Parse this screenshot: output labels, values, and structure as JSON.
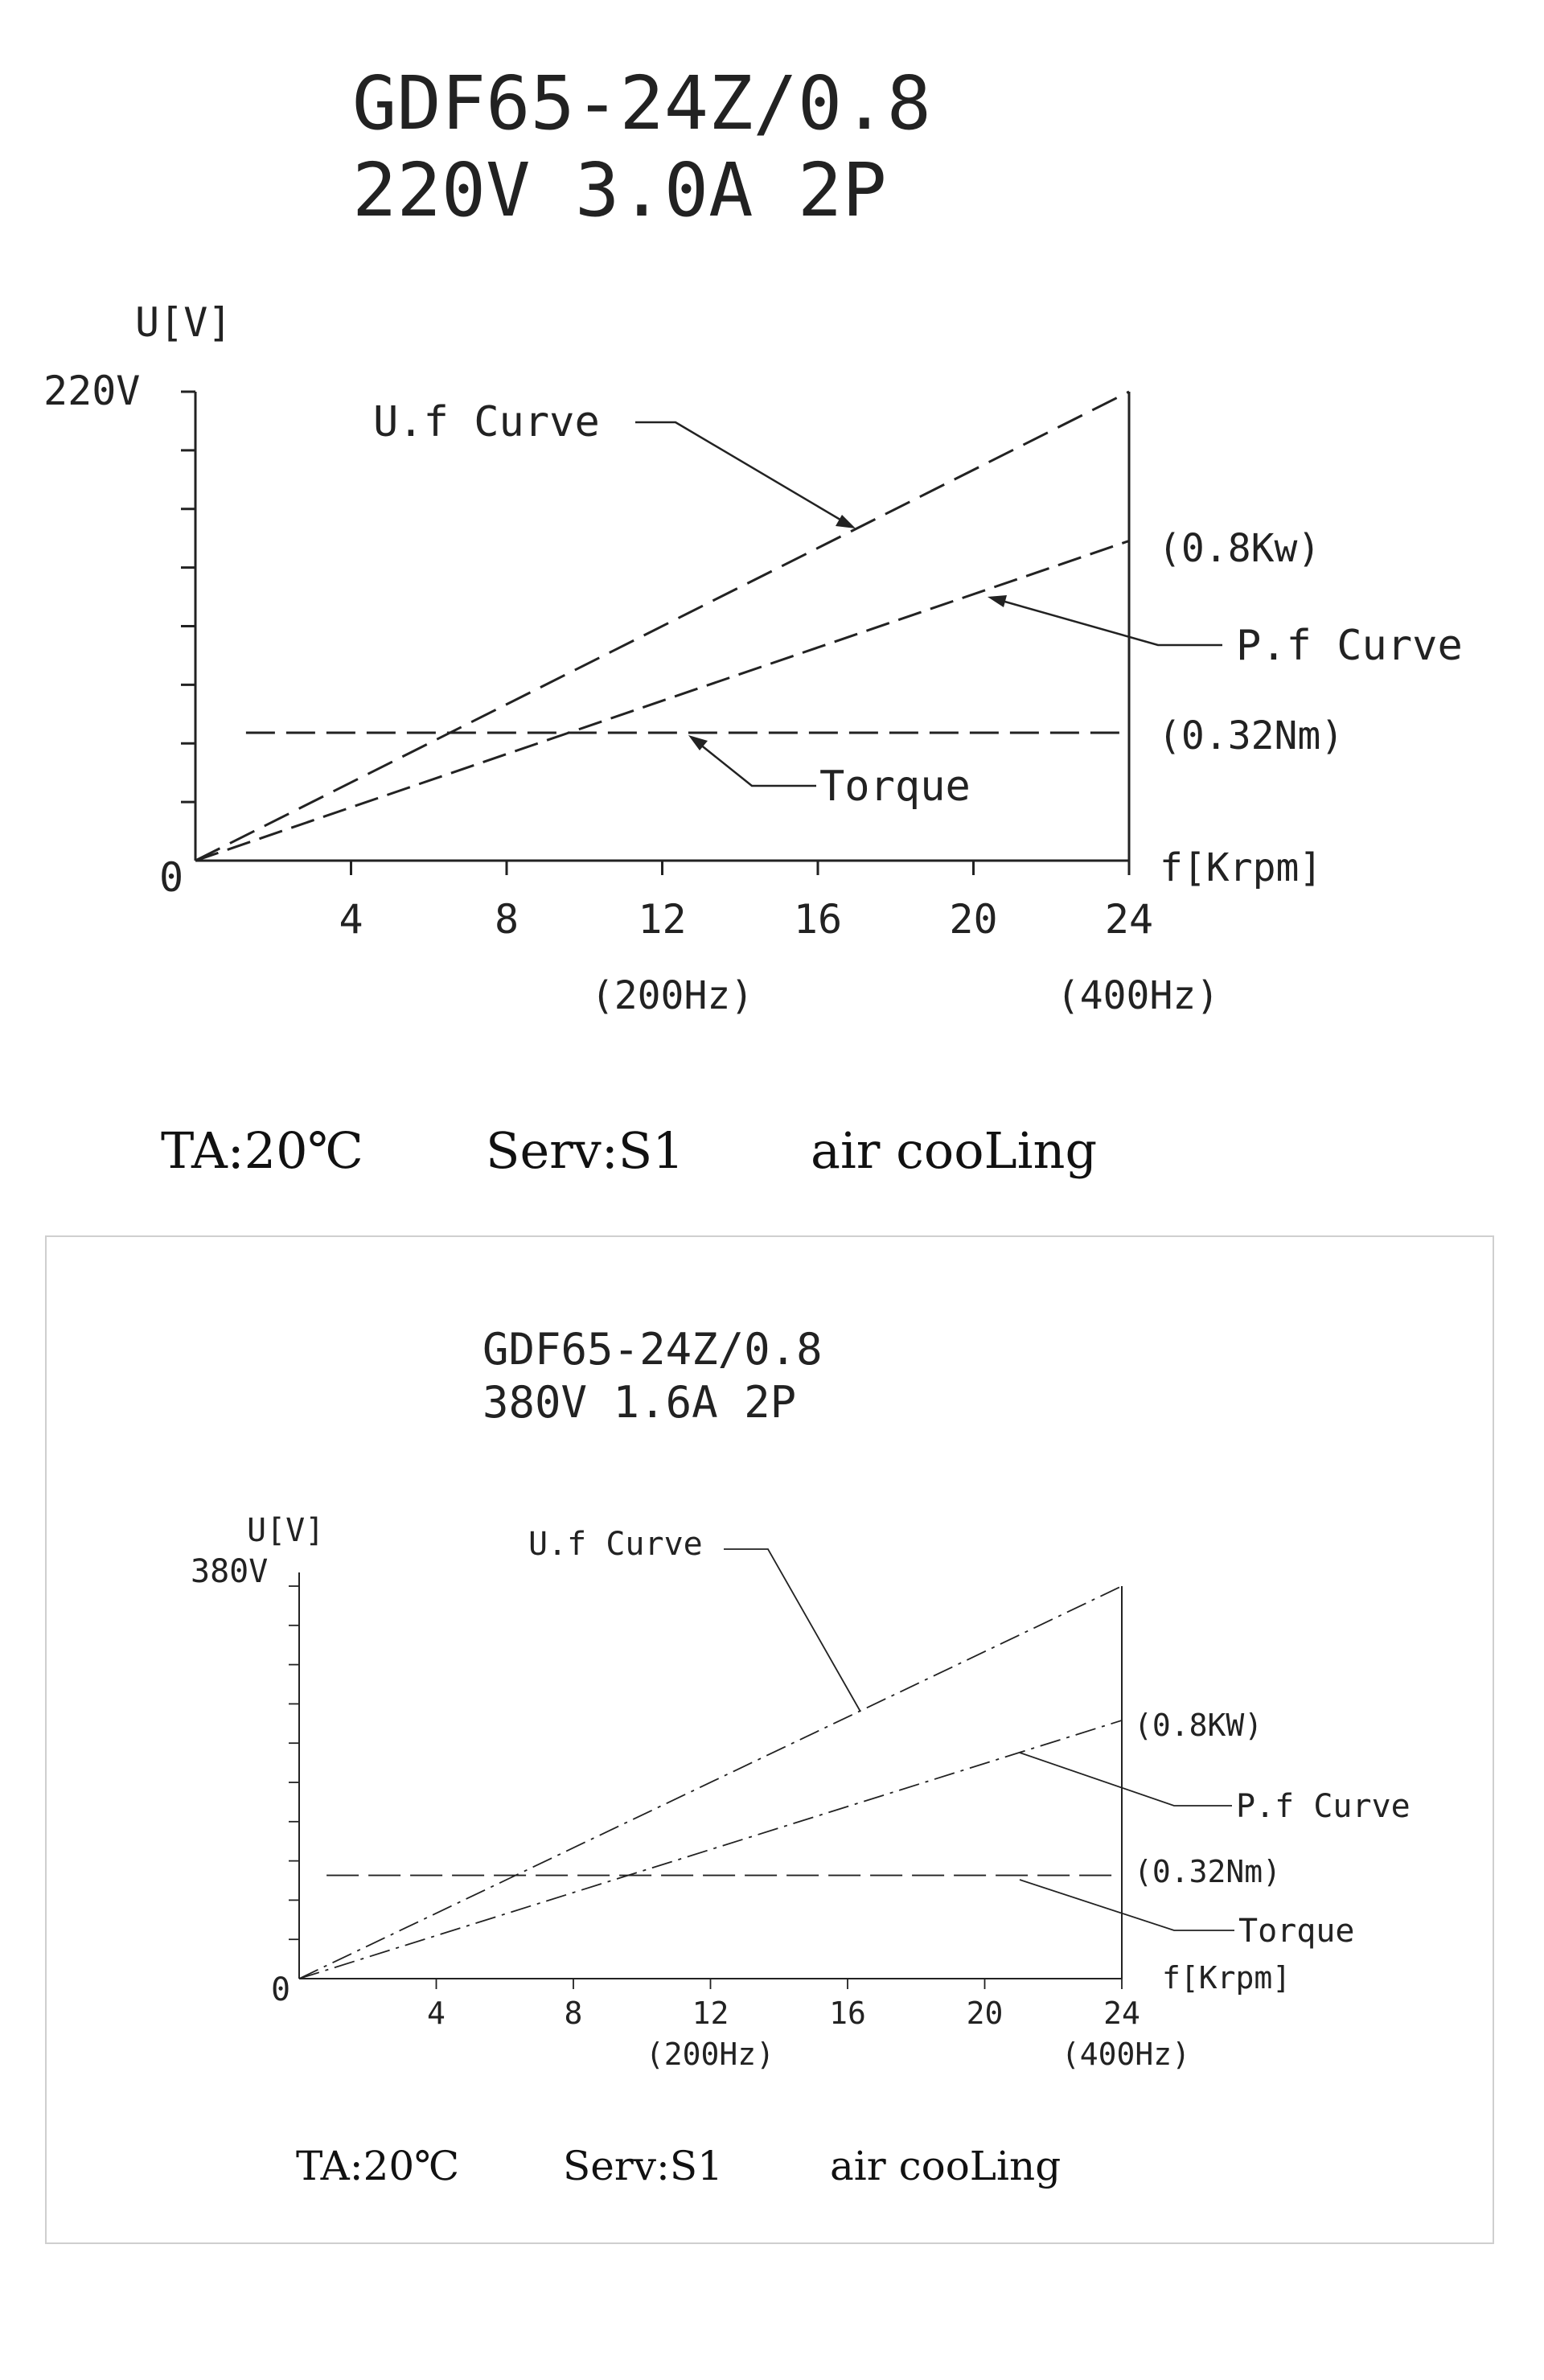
{
  "chart_data": [
    {
      "type": "line",
      "title": "GDF65-24Z/0.8",
      "subtitle": "220V 3.0A 2P",
      "ylabel": "U[V]",
      "y_max_label": "220V",
      "origin_label": "0",
      "xlabel": "f[Krpm]",
      "x_ticks": [
        4,
        8,
        12,
        16,
        20,
        24
      ],
      "xlim": [
        0,
        24
      ],
      "ylim": [
        0,
        220
      ],
      "freq_labels": [
        {
          "x": 12,
          "text": "(200Hz)"
        },
        {
          "x": 24,
          "text": "(400Hz)"
        }
      ],
      "series": [
        {
          "name": "U.f Curve",
          "x": [
            0,
            24
          ],
          "y": [
            0,
            220
          ]
        },
        {
          "name": "P.f Curve",
          "x": [
            0,
            24
          ],
          "y": [
            0,
            150
          ],
          "end_label": "(0.8Kw)"
        },
        {
          "name": "Torque",
          "x": [
            1.3,
            24
          ],
          "y": [
            60,
            60
          ],
          "end_label": "(0.32Nm)"
        }
      ],
      "footer": {
        "ta": "TA:20℃",
        "serv": "Serv:S1",
        "cooling": "air cooLing"
      }
    },
    {
      "type": "line",
      "title": "GDF65-24Z/0.8",
      "subtitle": "380V 1.6A 2P",
      "ylabel": "U[V]",
      "y_max_label": "380V",
      "origin_label": "0",
      "xlabel": "f[Krpm]",
      "x_ticks": [
        4,
        8,
        12,
        16,
        20,
        24
      ],
      "xlim": [
        0,
        24
      ],
      "ylim": [
        0,
        380
      ],
      "freq_labels": [
        {
          "x": 12,
          "text": "(200Hz)"
        },
        {
          "x": 24,
          "text": "(400Hz)"
        }
      ],
      "series": [
        {
          "name": "U.f Curve",
          "x": [
            0,
            24
          ],
          "y": [
            0,
            380
          ]
        },
        {
          "name": "P.f Curve",
          "x": [
            0,
            24
          ],
          "y": [
            0,
            250
          ],
          "end_label": "(0.8KW)"
        },
        {
          "name": "Torque",
          "x": [
            0.8,
            24
          ],
          "y": [
            100,
            100
          ],
          "end_label": "(0.32Nm)"
        }
      ],
      "footer": {
        "ta": "TA:20℃",
        "serv": "Serv:S1",
        "cooling": "air cooLing"
      }
    }
  ]
}
